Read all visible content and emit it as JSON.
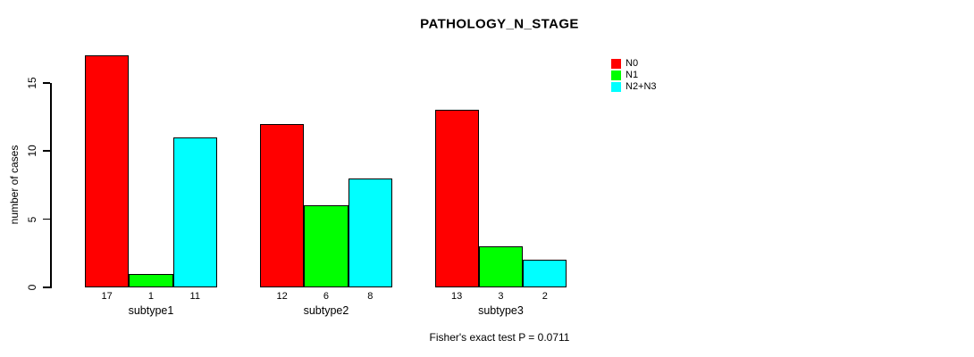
{
  "title": "PATHOLOGY_N_STAGE",
  "footer": {
    "note": "Fisher's exact test P = 0.0711"
  },
  "chart_data": {
    "type": "bar",
    "title": "PATHOLOGY_N_STAGE",
    "categories": [
      "subtype1",
      "subtype2",
      "subtype3"
    ],
    "series": [
      {
        "name": "N0",
        "color": "#ff0000",
        "values": [
          17,
          12,
          13
        ]
      },
      {
        "name": "N1",
        "color": "#00ff00",
        "values": [
          1,
          6,
          3
        ]
      },
      {
        "name": "N2+N3",
        "color": "#00ffff",
        "values": [
          11,
          8,
          2
        ]
      }
    ],
    "xlabel": "",
    "ylabel": "number of cases",
    "yticks": [
      0,
      5,
      10,
      15
    ],
    "ylim": [
      0,
      17
    ],
    "bar_value_labels": [
      [
        "17",
        "1",
        "11"
      ],
      [
        "12",
        "6",
        "8"
      ],
      [
        "13",
        "3",
        "2"
      ]
    ],
    "grid": false,
    "legend_position": "top-right",
    "annotation": "Fisher's exact test P = 0.0711"
  }
}
